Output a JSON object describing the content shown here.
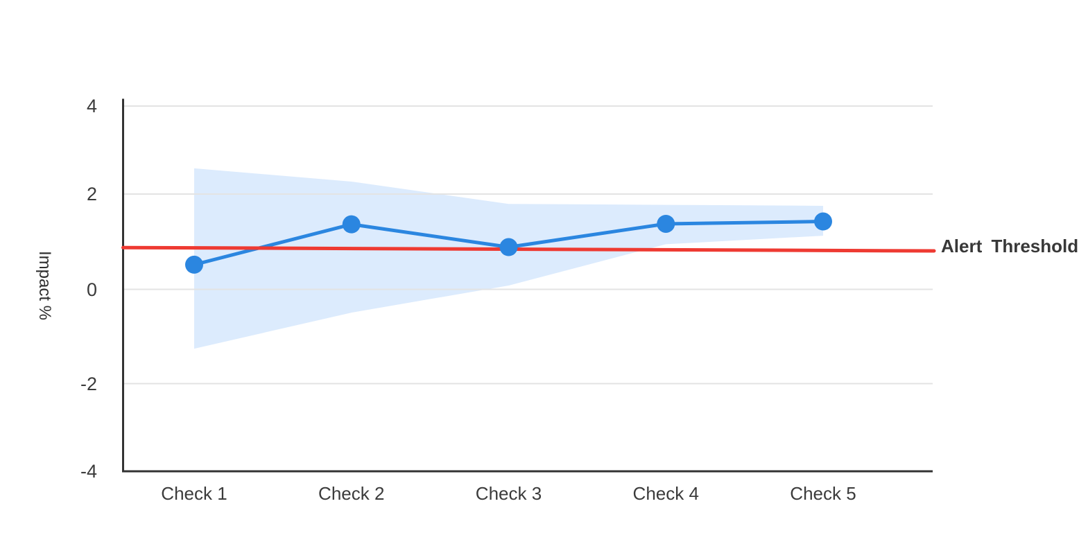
{
  "chart_data": {
    "type": "line",
    "categories": [
      "Check 1",
      "Check 2",
      "Check 3",
      "Check 4",
      "Check 5"
    ],
    "series": [
      {
        "name": "Impact",
        "values": [
          0.52,
          1.37,
          0.89,
          1.38,
          1.43
        ]
      }
    ],
    "confidence_band": {
      "upper": [
        2.55,
        2.27,
        1.8,
        1.78,
        1.76
      ],
      "lower": [
        -1.25,
        -0.49,
        0.08,
        0.95,
        1.13
      ]
    },
    "threshold": {
      "label": "Alert Threshold",
      "start_value": 0.88,
      "end_value": 0.81
    },
    "ylabel": "Impact %",
    "xlabel": "",
    "y_ticks": [
      4,
      2,
      0,
      -2,
      -4
    ],
    "y_tick_labels": [
      "4",
      "2",
      "0",
      "-2",
      "-4"
    ],
    "ylim": [
      -4,
      4
    ],
    "grid": "horizontal",
    "legend": "none",
    "colors": {
      "series": "#2b86e0",
      "band": "#dcebfd",
      "threshold": "#ee3a32",
      "grid": "#e3e3e3",
      "axis": "#333333",
      "text": "#3b3b3b"
    }
  }
}
